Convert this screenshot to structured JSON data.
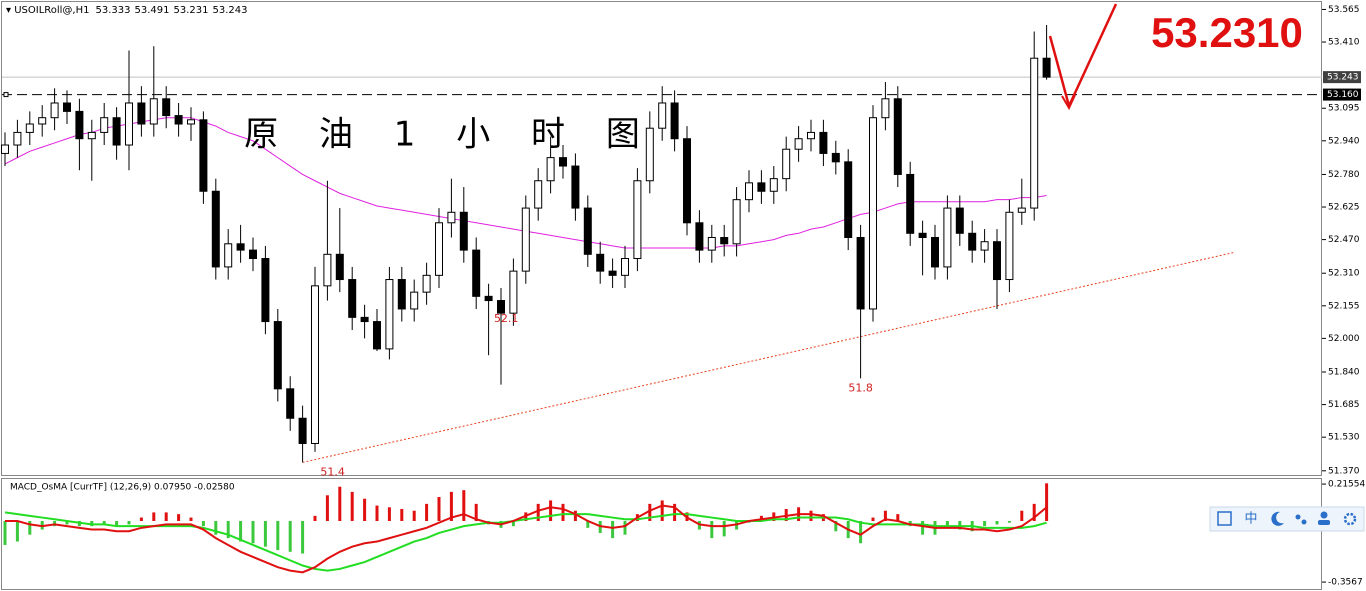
{
  "chart_data": [
    {
      "type": "candlestick",
      "header_symbol": "USOILRoll@,H1",
      "title": "原 油 1 小 时 图",
      "annotation": "53.2310",
      "open": [
        52.88,
        52.92,
        52.98,
        53.02,
        53.05,
        53.12,
        53.08,
        52.95,
        52.98,
        53.05,
        52.92,
        53.12,
        53.02,
        53.14,
        53.06,
        53.02,
        53.04,
        52.7,
        52.34,
        52.45,
        52.42,
        52.38,
        52.08,
        51.76,
        51.62,
        51.5,
        52.25,
        52.4,
        52.28,
        52.1,
        52.08,
        51.95,
        52.28,
        52.14,
        52.22,
        52.3,
        52.55,
        52.6,
        52.42,
        52.2,
        52.18,
        52.12,
        52.32,
        52.62,
        52.75,
        52.86,
        52.82,
        52.62,
        52.4,
        52.32,
        52.3,
        52.38,
        52.75,
        53.0,
        53.12,
        52.95,
        52.55,
        52.42,
        52.48,
        52.45,
        52.66,
        52.74,
        52.7,
        52.76,
        52.9,
        52.95,
        52.98,
        52.88,
        52.84,
        52.48,
        52.14,
        53.05,
        53.14,
        52.78,
        52.5,
        52.48,
        52.34,
        52.62,
        52.5,
        52.42,
        52.46,
        52.28,
        52.6,
        52.62,
        53.333
      ],
      "high": [
        52.98,
        53.04,
        53.08,
        53.11,
        53.19,
        53.18,
        53.14,
        53.04,
        53.12,
        53.1,
        53.37,
        53.2,
        53.39,
        53.2,
        53.12,
        53.1,
        53.08,
        52.76,
        52.52,
        52.54,
        52.48,
        52.44,
        52.14,
        51.82,
        51.68,
        52.34,
        52.75,
        52.62,
        52.34,
        52.16,
        52.14,
        52.34,
        52.34,
        52.28,
        52.36,
        52.62,
        52.76,
        52.72,
        52.48,
        52.26,
        52.24,
        52.38,
        52.68,
        52.81,
        52.96,
        52.92,
        52.88,
        52.68,
        52.46,
        52.38,
        52.44,
        52.81,
        53.08,
        53.2,
        53.18,
        53.01,
        52.61,
        52.54,
        52.54,
        52.72,
        52.8,
        52.8,
        52.82,
        52.96,
        53.01,
        53.04,
        53.04,
        52.94,
        52.9,
        52.54,
        53.11,
        53.22,
        53.2,
        52.84,
        52.56,
        52.54,
        52.68,
        52.68,
        52.56,
        52.52,
        52.52,
        52.66,
        52.76,
        53.46,
        53.491
      ],
      "low": [
        52.82,
        52.86,
        52.92,
        52.96,
        52.99,
        53.02,
        52.8,
        52.75,
        52.92,
        52.85,
        52.8,
        52.96,
        52.96,
        53.0,
        52.96,
        52.94,
        52.64,
        52.28,
        52.28,
        52.36,
        52.32,
        52.02,
        51.7,
        51.56,
        51.41,
        51.46,
        52.18,
        52.22,
        52.04,
        52.0,
        51.94,
        51.9,
        52.08,
        52.08,
        52.16,
        52.24,
        52.48,
        52.36,
        52.14,
        51.92,
        51.78,
        52.06,
        52.26,
        52.56,
        52.69,
        52.76,
        52.56,
        52.34,
        52.26,
        52.24,
        52.24,
        52.32,
        52.69,
        52.94,
        52.89,
        52.49,
        52.36,
        52.36,
        52.39,
        52.39,
        52.6,
        52.64,
        52.64,
        52.7,
        52.84,
        52.89,
        52.82,
        52.78,
        52.42,
        51.81,
        52.08,
        52.99,
        52.72,
        52.44,
        52.3,
        52.28,
        52.28,
        52.44,
        52.36,
        52.36,
        52.14,
        52.22,
        52.54,
        52.56,
        53.231
      ],
      "close": [
        52.92,
        52.98,
        53.02,
        53.05,
        53.12,
        53.08,
        52.95,
        52.98,
        53.05,
        52.92,
        53.12,
        53.02,
        53.14,
        53.06,
        53.02,
        53.04,
        52.7,
        52.34,
        52.45,
        52.42,
        52.38,
        52.08,
        51.76,
        51.62,
        51.5,
        52.25,
        52.4,
        52.28,
        52.1,
        52.08,
        51.95,
        52.28,
        52.14,
        52.22,
        52.3,
        52.55,
        52.6,
        52.42,
        52.2,
        52.18,
        52.12,
        52.32,
        52.62,
        52.75,
        52.86,
        52.82,
        52.62,
        52.4,
        52.32,
        52.3,
        52.38,
        52.75,
        53.0,
        53.12,
        52.95,
        52.55,
        52.42,
        52.48,
        52.45,
        52.66,
        52.74,
        52.7,
        52.76,
        52.9,
        52.95,
        52.98,
        52.88,
        52.84,
        52.48,
        52.14,
        53.05,
        53.14,
        52.78,
        52.5,
        52.48,
        52.34,
        52.62,
        52.5,
        52.42,
        52.46,
        52.28,
        52.6,
        52.62,
        53.333,
        53.243
      ],
      "ma": [
        52.83,
        52.86,
        52.89,
        52.91,
        52.93,
        52.95,
        52.97,
        52.98,
        53.0,
        53.01,
        53.02,
        53.03,
        53.04,
        53.05,
        53.05,
        53.05,
        53.03,
        53.01,
        52.98,
        52.96,
        52.94,
        52.9,
        52.86,
        52.82,
        52.78,
        52.75,
        52.72,
        52.69,
        52.67,
        52.65,
        52.63,
        52.62,
        52.61,
        52.6,
        52.59,
        52.58,
        52.57,
        52.56,
        52.55,
        52.54,
        52.53,
        52.52,
        52.51,
        52.5,
        52.49,
        52.48,
        52.47,
        52.46,
        52.45,
        52.44,
        52.43,
        52.43,
        52.43,
        52.43,
        52.43,
        52.43,
        52.43,
        52.43,
        52.44,
        52.44,
        52.45,
        52.46,
        52.47,
        52.49,
        52.5,
        52.52,
        52.53,
        52.55,
        52.57,
        52.59,
        52.6,
        52.62,
        52.64,
        52.65,
        52.65,
        52.65,
        52.65,
        52.65,
        52.65,
        52.65,
        52.66,
        52.66,
        52.67,
        52.67,
        52.68
      ],
      "ma_color": "#e020e0",
      "low_labels": [
        {
          "label": "51.4",
          "value": 51.41
        },
        {
          "label": "51.8",
          "value": 51.81
        },
        {
          "label": "52.1",
          "value": 52.14
        }
      ],
      "level": {
        "value": 53.16,
        "label": "53.160"
      },
      "trendline": {
        "x": [
          24,
          99.2
        ],
        "y": [
          51.41,
          52.41
        ],
        "color": "#e8401c"
      },
      "ylim": [
        51.35,
        53.61
      ],
      "yticks": [
        53.565,
        {
          "value": 53.41,
          "label": "53.410"
        },
        53.095,
        {
          "value": 52.94,
          "label": "52.940"
        },
        {
          "value": 52.78,
          "label": "52.780"
        },
        52.625,
        {
          "value": 52.47,
          "label": "52.470"
        },
        {
          "value": 52.31,
          "label": "52.310"
        },
        52.155,
        {
          "value": 52,
          "label": "52.000"
        },
        {
          "value": 51.84,
          "label": "51.840"
        },
        51.685,
        {
          "value": 51.53,
          "label": "51.530"
        },
        {
          "value": 51.37,
          "label": "51.370"
        }
      ]
    },
    {
      "type": "macd",
      "title": "MACD_OsMA [CurrTF] (12,26,9) 0.07950 -0.02580",
      "histogram": [
        -0.14,
        -0.12,
        -0.08,
        -0.05,
        -0.03,
        -0.02,
        -0.03,
        -0.03,
        -0.02,
        -0.03,
        -0.02,
        0.02,
        0.05,
        0.05,
        0.04,
        0.02,
        -0.03,
        -0.08,
        -0.1,
        -0.12,
        -0.13,
        -0.15,
        -0.17,
        -0.18,
        -0.19,
        0.03,
        0.15,
        0.2,
        0.17,
        0.13,
        0.09,
        0.08,
        0.07,
        0.06,
        0.1,
        0.14,
        0.17,
        0.18,
        0.1,
        -0.02,
        -0.04,
        -0.03,
        0.05,
        0.1,
        0.12,
        0.1,
        0.06,
        -0.04,
        -0.07,
        -0.1,
        -0.08,
        0.04,
        0.1,
        0.12,
        0.1,
        0.05,
        -0.05,
        -0.1,
        -0.09,
        -0.05,
        -0.01,
        0.03,
        0.05,
        0.07,
        0.08,
        0.06,
        0.04,
        -0.06,
        -0.1,
        -0.13,
        0.02,
        0.06,
        0.04,
        -0.03,
        -0.08,
        -0.08,
        -0.04,
        -0.05,
        -0.06,
        -0.03,
        -0.02,
        -0.01,
        0.06,
        0.1,
        0.22
      ],
      "macd": [
        0.0,
        0.0,
        -0.02,
        -0.03,
        -0.02,
        -0.03,
        -0.04,
        -0.05,
        -0.05,
        -0.06,
        -0.06,
        -0.04,
        -0.03,
        -0.02,
        -0.02,
        -0.02,
        -0.05,
        -0.1,
        -0.14,
        -0.18,
        -0.21,
        -0.24,
        -0.27,
        -0.29,
        -0.3,
        -0.27,
        -0.22,
        -0.18,
        -0.15,
        -0.13,
        -0.12,
        -0.1,
        -0.08,
        -0.06,
        -0.04,
        -0.01,
        0.02,
        0.04,
        0.01,
        -0.01,
        -0.02,
        0.0,
        0.03,
        0.06,
        0.08,
        0.07,
        0.04,
        0.0,
        -0.03,
        -0.04,
        -0.03,
        0.02,
        0.06,
        0.09,
        0.08,
        0.02,
        -0.02,
        -0.03,
        -0.03,
        -0.02,
        0.0,
        0.01,
        0.02,
        0.03,
        0.04,
        0.04,
        0.03,
        -0.01,
        -0.05,
        -0.08,
        -0.03,
        0.01,
        0.0,
        -0.02,
        -0.03,
        -0.04,
        -0.04,
        -0.04,
        -0.05,
        -0.05,
        -0.06,
        -0.05,
        -0.03,
        0.02,
        0.08
      ],
      "signal": [
        0.05,
        0.04,
        0.03,
        0.02,
        0.01,
        0.0,
        -0.01,
        -0.02,
        -0.02,
        -0.03,
        -0.03,
        -0.03,
        -0.03,
        -0.03,
        -0.03,
        -0.03,
        -0.04,
        -0.06,
        -0.08,
        -0.11,
        -0.14,
        -0.17,
        -0.2,
        -0.23,
        -0.26,
        -0.28,
        -0.29,
        -0.28,
        -0.26,
        -0.24,
        -0.21,
        -0.18,
        -0.15,
        -0.12,
        -0.1,
        -0.07,
        -0.05,
        -0.03,
        -0.02,
        -0.01,
        -0.01,
        0.0,
        0.01,
        0.02,
        0.03,
        0.04,
        0.04,
        0.04,
        0.03,
        0.02,
        0.01,
        0.01,
        0.02,
        0.03,
        0.04,
        0.04,
        0.03,
        0.02,
        0.01,
        0.0,
        0.0,
        0.0,
        0.01,
        0.01,
        0.02,
        0.02,
        0.02,
        0.02,
        0.01,
        -0.01,
        -0.02,
        -0.02,
        -0.02,
        -0.02,
        -0.02,
        -0.03,
        -0.03,
        -0.03,
        -0.03,
        -0.04,
        -0.04,
        -0.04,
        -0.04,
        -0.03,
        -0.01
      ],
      "colors": {
        "positive": "#e01010",
        "negative": "#3cc83c",
        "macd": "#e01010",
        "signal": "#22dd22"
      },
      "ylim": [
        -0.403,
        0.251
      ],
      "yticks": [
        0.21554,
        -0.3567
      ]
    }
  ],
  "toolbar": [
    "中"
  ]
}
